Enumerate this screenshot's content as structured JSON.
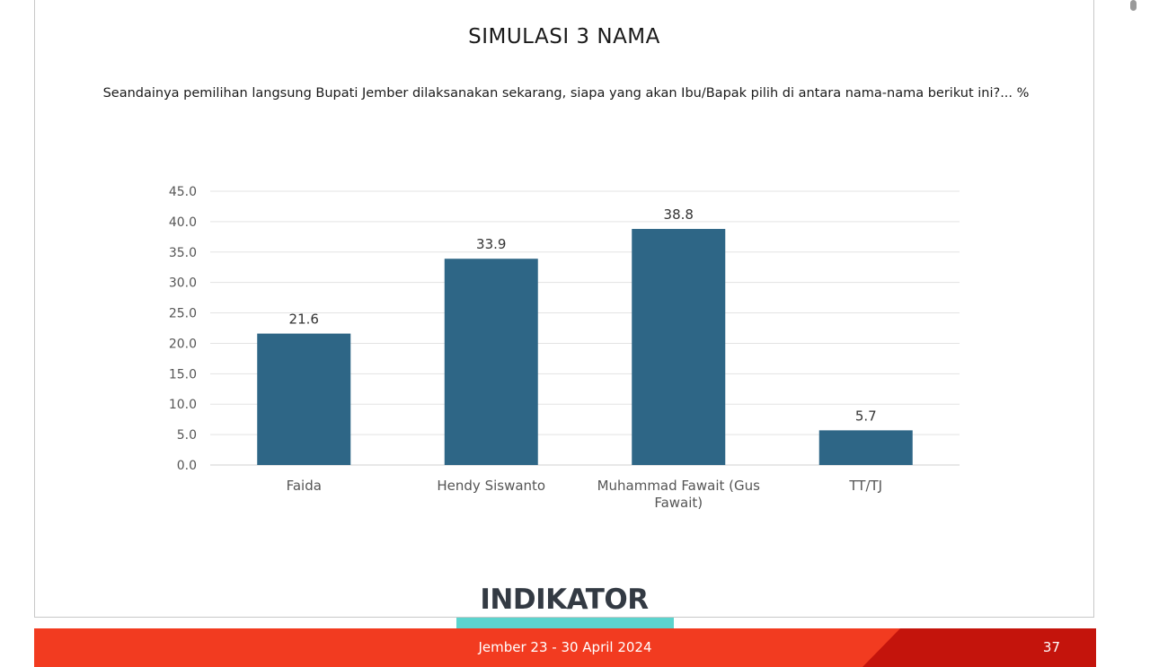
{
  "slide": {
    "title": "SIMULASI 3 NAMA",
    "question": "Seandainya pemilihan langsung Bupati Jember dilaksanakan sekarang, siapa yang akan Ibu/Bapak pilih di antara nama-nama berikut ini?... %",
    "brand": "INDIKATOR",
    "footer_text": "Jember 23 - 30 April 2024",
    "page_number": "37"
  },
  "colors": {
    "bar": "#2e6686",
    "footer_red": "#f23b20",
    "footer_dark_red": "#c4140c",
    "brand_accent": "#5cd4ce"
  },
  "chart_data": {
    "type": "bar",
    "categories": [
      "Faida",
      "Hendy Siswanto",
      "Muhammad Fawait (Gus Fawait)",
      "TT/TJ"
    ],
    "category_lines": [
      [
        "Faida"
      ],
      [
        "Hendy Siswanto"
      ],
      [
        "Muhammad Fawait (Gus",
        "Fawait)"
      ],
      [
        "TT/TJ"
      ]
    ],
    "values": [
      21.6,
      33.9,
      38.8,
      5.7
    ],
    "data_labels": [
      "21.6",
      "33.9",
      "38.8",
      "5.7"
    ],
    "ylim": [
      0,
      45
    ],
    "yticks": [
      "0.0",
      "5.0",
      "10.0",
      "15.0",
      "20.0",
      "25.0",
      "30.0",
      "35.0",
      "40.0",
      "45.0"
    ],
    "grid": true,
    "legend": "none"
  }
}
